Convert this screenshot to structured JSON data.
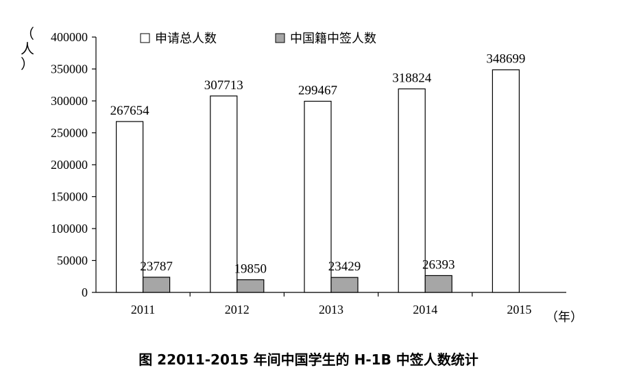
{
  "chart_data": {
    "type": "bar",
    "categories": [
      "2011",
      "2012",
      "2013",
      "2014",
      "2015"
    ],
    "series": [
      {
        "name": "申请总人数",
        "values": [
          267654,
          307713,
          299467,
          318824,
          348699
        ],
        "color": "#ffffff"
      },
      {
        "name": "中国籍中签人数",
        "values": [
          23787,
          19850,
          23429,
          26393,
          null
        ],
        "color": "#a6a6a6"
      }
    ],
    "ylim": [
      0,
      400000
    ],
    "yticks": [
      "0",
      "50000",
      "100000",
      "150000",
      "200000",
      "250000",
      "300000",
      "350000",
      "400000"
    ],
    "ylabel": "（人）",
    "xlabel": "（年）",
    "legend": "top",
    "grid": false
  },
  "caption": "图 22011-2015 年间中国学生的 H-1B 中签人数统计"
}
